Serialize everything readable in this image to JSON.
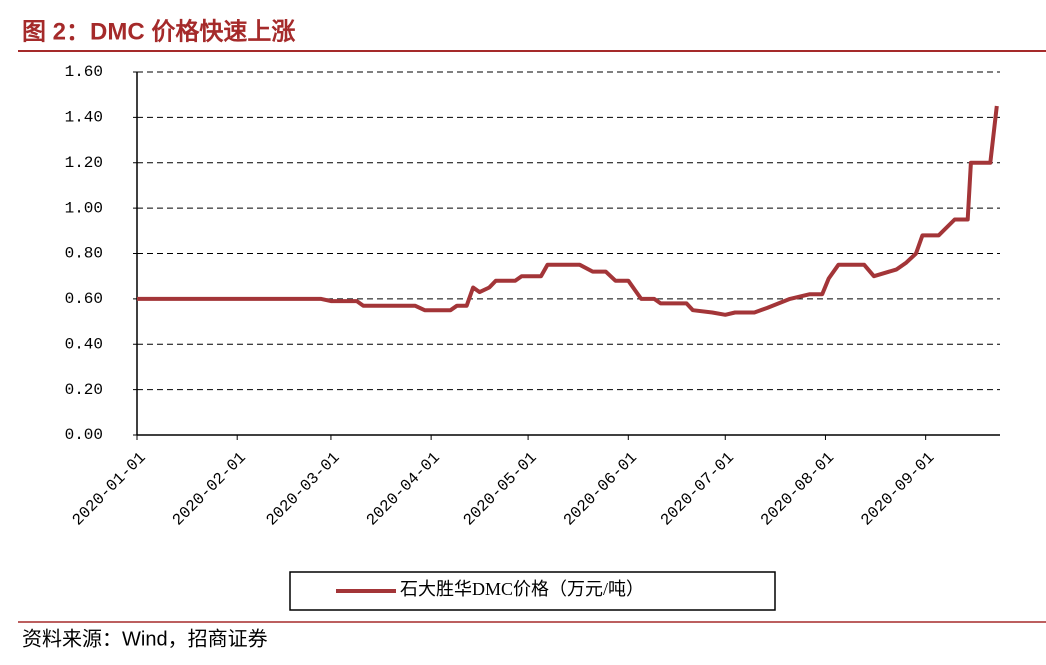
{
  "chart_data": {
    "type": "line",
    "title": "图 2：DMC 价格快速上涨",
    "source": "资料来源：Wind，招商证券",
    "x": [
      "2020-01-01",
      "2020-02-27",
      "2020-03-01",
      "2020-03-09",
      "2020-03-11",
      "2020-03-27",
      "2020-03-30",
      "2020-04-07",
      "2020-04-09",
      "2020-04-12",
      "2020-04-14",
      "2020-04-16",
      "2020-04-19",
      "2020-04-21",
      "2020-04-27",
      "2020-04-29",
      "2020-05-05",
      "2020-05-07",
      "2020-05-17",
      "2020-05-21",
      "2020-05-25",
      "2020-05-28",
      "2020-06-01",
      "2020-06-05",
      "2020-06-09",
      "2020-06-11",
      "2020-06-19",
      "2020-06-21",
      "2020-06-27",
      "2020-07-01",
      "2020-07-04",
      "2020-07-10",
      "2020-07-14",
      "2020-07-21",
      "2020-07-27",
      "2020-07-31",
      "2020-08-02",
      "2020-08-05",
      "2020-08-13",
      "2020-08-16",
      "2020-08-23",
      "2020-08-26",
      "2020-08-29",
      "2020-08-31",
      "2020-09-05",
      "2020-09-10",
      "2020-09-14",
      "2020-09-15",
      "2020-09-21",
      "2020-09-23"
    ],
    "series": [
      {
        "name": "石大胜华DMC价格（万元/吨）",
        "color": "#a33538",
        "values": [
          0.6,
          0.6,
          0.59,
          0.59,
          0.57,
          0.57,
          0.55,
          0.55,
          0.57,
          0.57,
          0.65,
          0.63,
          0.65,
          0.68,
          0.68,
          0.7,
          0.7,
          0.75,
          0.75,
          0.72,
          0.72,
          0.68,
          0.68,
          0.6,
          0.6,
          0.58,
          0.58,
          0.55,
          0.54,
          0.53,
          0.54,
          0.54,
          0.56,
          0.6,
          0.62,
          0.62,
          0.69,
          0.75,
          0.75,
          0.7,
          0.73,
          0.76,
          0.8,
          0.88,
          0.88,
          0.95,
          0.95,
          1.2,
          1.2,
          1.45
        ]
      }
    ],
    "xlim": [
      "2020-01-01",
      "2020-09-24"
    ],
    "xticks": [
      "2020-01-01",
      "2020-02-01",
      "2020-03-01",
      "2020-04-01",
      "2020-05-01",
      "2020-06-01",
      "2020-07-01",
      "2020-08-01",
      "2020-09-01"
    ],
    "ylim": [
      0,
      1.6
    ],
    "yticks": [
      {
        "value": 0,
        "label": "0.00"
      },
      {
        "value": 0.2,
        "label": "0.20"
      },
      {
        "value": 0.4,
        "label": "0.40"
      },
      {
        "value": 0.6,
        "label": "0.60"
      },
      {
        "value": 0.8,
        "label": "0.80"
      },
      {
        "value": 1.0,
        "label": "1.00"
      },
      {
        "value": 1.2,
        "label": "1.20"
      },
      {
        "value": 1.4,
        "label": "1.40"
      },
      {
        "value": 1.6,
        "label": "1.60"
      }
    ],
    "grid": true
  }
}
